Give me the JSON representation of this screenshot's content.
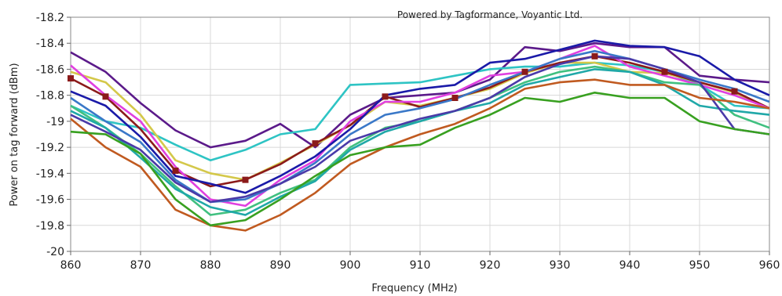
{
  "chart_data": {
    "type": "line",
    "title": "",
    "annotation": "Powered by Tagformance, Voyantic Ltd.",
    "xlabel": "Frequency (MHz)",
    "ylabel": "Power on tag forward (dBm)",
    "xlim": [
      860,
      960
    ],
    "ylim": [
      -20,
      -18.2
    ],
    "x_ticks": [
      860,
      870,
      880,
      890,
      900,
      910,
      920,
      930,
      940,
      950,
      960
    ],
    "y_ticks": [
      -20,
      -19.8,
      -19.6,
      -19.4,
      -19.2,
      -19,
      -18.8,
      -18.6,
      -18.4,
      -18.2
    ],
    "x_tick_labels": [
      "860",
      "870",
      "880",
      "890",
      "900",
      "910",
      "920",
      "930",
      "940",
      "950",
      "960"
    ],
    "y_tick_labels": [
      "-20",
      "-19.8",
      "-19.6",
      "-19.4",
      "-19.2",
      "-19",
      "-18.8",
      "-18.6",
      "-18.4",
      "-18.2"
    ],
    "grid": true,
    "legend": "none",
    "x": [
      860,
      865,
      870,
      875,
      880,
      885,
      890,
      895,
      900,
      905,
      910,
      915,
      920,
      925,
      930,
      935,
      940,
      945,
      950,
      955,
      960
    ],
    "series": [
      {
        "color": "#5b1a8a",
        "values": [
          -18.47,
          -18.62,
          -18.86,
          -19.07,
          -19.2,
          -19.15,
          -19.02,
          -19.2,
          -18.95,
          -18.82,
          -18.8,
          -18.78,
          -18.68,
          -18.43,
          -18.46,
          -18.4,
          -18.43,
          -18.43,
          -18.65,
          -18.68,
          -18.7
        ]
      },
      {
        "color": "#2ec4c4",
        "values": [
          -18.88,
          -19.0,
          -19.05,
          -19.18,
          -19.3,
          -19.22,
          -19.1,
          -19.06,
          -18.72,
          -18.71,
          -18.7,
          -18.65,
          -18.6,
          -18.58,
          -18.58,
          -18.55,
          -18.57,
          -18.62,
          -18.72,
          -18.88,
          -18.9
        ]
      },
      {
        "color": "#d4c84a",
        "values": [
          -18.62,
          -18.7,
          -18.95,
          -19.3,
          -19.4,
          -19.45,
          -19.32,
          -19.18,
          -19.03,
          -18.85,
          -18.88,
          -18.82,
          -18.75,
          -18.63,
          -18.55,
          -18.55,
          -18.62,
          -18.63,
          -18.7,
          -18.78,
          -18.9
        ]
      },
      {
        "color": "#8b1a1a",
        "marker": true,
        "values": [
          -18.67,
          -18.81,
          -19.06,
          -19.38,
          -19.5,
          -19.45,
          -19.33,
          -19.17,
          -19.03,
          -18.81,
          -18.89,
          -18.82,
          -18.74,
          -18.62,
          -18.55,
          -18.5,
          -18.55,
          -18.62,
          -18.7,
          -18.77,
          -18.9
        ]
      },
      {
        "color": "#e040e0",
        "values": [
          -18.57,
          -18.8,
          -19.0,
          -19.35,
          -19.6,
          -19.65,
          -19.45,
          -19.3,
          -19.0,
          -18.85,
          -18.85,
          -18.78,
          -18.65,
          -18.62,
          -18.52,
          -18.42,
          -18.58,
          -18.65,
          -18.72,
          -18.8,
          -18.9
        ]
      },
      {
        "color": "#1a1aa8",
        "values": [
          -18.77,
          -18.88,
          -19.12,
          -19.42,
          -19.48,
          -19.55,
          -19.42,
          -19.27,
          -19.06,
          -18.8,
          -18.75,
          -18.72,
          -18.55,
          -18.52,
          -18.45,
          -18.38,
          -18.42,
          -18.43,
          -18.5,
          -18.68,
          -18.8
        ]
      },
      {
        "color": "#3a78c8",
        "values": [
          -18.82,
          -19.0,
          -19.16,
          -19.45,
          -19.62,
          -19.6,
          -19.48,
          -19.32,
          -19.1,
          -18.95,
          -18.9,
          -18.83,
          -18.72,
          -18.62,
          -18.52,
          -18.46,
          -18.52,
          -18.6,
          -18.68,
          -18.75,
          -18.85
        ]
      },
      {
        "color": "#40c080",
        "values": [
          -18.88,
          -19.05,
          -19.25,
          -19.5,
          -19.72,
          -19.68,
          -19.55,
          -19.45,
          -19.2,
          -19.05,
          -19.0,
          -18.92,
          -18.82,
          -18.7,
          -18.62,
          -18.58,
          -18.62,
          -18.7,
          -18.72,
          -18.95,
          -19.05
        ]
      },
      {
        "color": "#20a8a8",
        "values": [
          -18.92,
          -19.05,
          -19.28,
          -19.52,
          -19.66,
          -19.72,
          -19.58,
          -19.46,
          -19.22,
          -19.08,
          -19.0,
          -18.92,
          -18.86,
          -18.72,
          -18.66,
          -18.6,
          -18.62,
          -18.72,
          -18.88,
          -18.92,
          -18.95
        ]
      },
      {
        "color": "#4a3aa8",
        "values": [
          -18.95,
          -19.08,
          -19.22,
          -19.47,
          -19.62,
          -19.58,
          -19.48,
          -19.35,
          -19.15,
          -19.06,
          -18.98,
          -18.92,
          -18.82,
          -18.66,
          -18.56,
          -18.5,
          -18.52,
          -18.6,
          -18.7,
          -19.06,
          -19.1
        ]
      },
      {
        "color": "#c05a20",
        "values": [
          -18.98,
          -19.2,
          -19.35,
          -19.68,
          -19.8,
          -19.84,
          -19.72,
          -19.55,
          -19.33,
          -19.2,
          -19.1,
          -19.02,
          -18.9,
          -18.75,
          -18.7,
          -18.68,
          -18.72,
          -18.72,
          -18.82,
          -18.85,
          -18.9
        ]
      },
      {
        "color": "#38a020",
        "values": [
          -19.08,
          -19.1,
          -19.25,
          -19.6,
          -19.8,
          -19.76,
          -19.6,
          -19.42,
          -19.26,
          -19.2,
          -19.18,
          -19.05,
          -18.95,
          -18.82,
          -18.85,
          -18.78,
          -18.82,
          -18.82,
          -19.0,
          -19.06,
          -19.1
        ]
      }
    ]
  }
}
